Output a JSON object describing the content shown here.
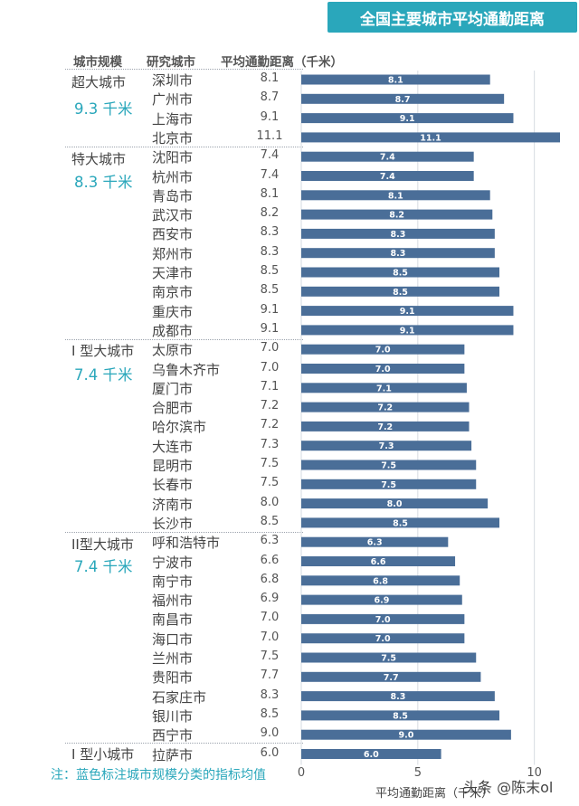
{
  "title": "全国主要城市平均通勤距离",
  "headers": {
    "scale": "城市规模",
    "city": "研究城市",
    "dist": "平均通勤距离（千米）"
  },
  "groups": [
    {
      "name": "超大城市",
      "avg": "9.3 千米"
    },
    {
      "name": "特大城市",
      "avg": "8.3 千米"
    },
    {
      "name": "I 型大城市",
      "avg": "7.4 千米"
    },
    {
      "name": "II型大城市",
      "avg": "7.4 千米"
    },
    {
      "name": "I 型小城市",
      "avg": ""
    }
  ],
  "chart_data": {
    "type": "bar",
    "orientation": "horizontal",
    "title": "全国主要城市平均通勤距离",
    "xlabel": "平均通勤距离（千米）",
    "xlim": [
      0,
      11.1
    ],
    "xticks": [
      "0",
      "5",
      "10"
    ],
    "bar_color": "#4a6e98",
    "grid": true,
    "categories": [
      "深圳市",
      "广州市",
      "上海市",
      "北京市",
      "沈阳市",
      "杭州市",
      "青岛市",
      "武汉市",
      "西安市",
      "郑州市",
      "天津市",
      "南京市",
      "重庆市",
      "成都市",
      "太原市",
      "乌鲁木齐市",
      "厦门市",
      "合肥市",
      "哈尔滨市",
      "大连市",
      "昆明市",
      "长春市",
      "济南市",
      "长沙市",
      "呼和浩特市",
      "宁波市",
      "南宁市",
      "福州市",
      "南昌市",
      "海口市",
      "兰州市",
      "贵阳市",
      "石家庄市",
      "银川市",
      "西宁市",
      "拉萨市"
    ],
    "values": [
      8.1,
      8.7,
      9.1,
      11.1,
      7.4,
      7.4,
      8.1,
      8.2,
      8.3,
      8.3,
      8.5,
      8.5,
      9.1,
      9.1,
      7.0,
      7.0,
      7.1,
      7.2,
      7.2,
      7.3,
      7.5,
      7.5,
      8.0,
      8.5,
      6.3,
      6.6,
      6.8,
      6.9,
      7.0,
      7.0,
      7.5,
      7.7,
      8.3,
      8.5,
      9.0,
      6.0
    ],
    "labels": [
      "8.1",
      "8.7",
      "9.1",
      "11.1",
      "7.4",
      "7.4",
      "8.1",
      "8.2",
      "8.3",
      "8.3",
      "8.5",
      "8.5",
      "9.1",
      "9.1",
      "7.0",
      "7.0",
      "7.1",
      "7.2",
      "7.2",
      "7.3",
      "7.5",
      "7.5",
      "8.0",
      "8.5",
      "6.3",
      "6.6",
      "6.8",
      "6.9",
      "7.0",
      "7.0",
      "7.5",
      "7.7",
      "8.3",
      "8.5",
      "9.0",
      "6.0"
    ]
  },
  "note": "注：蓝色标注城市规模分类的指标均值",
  "watermark": "头条 @陈末ol"
}
